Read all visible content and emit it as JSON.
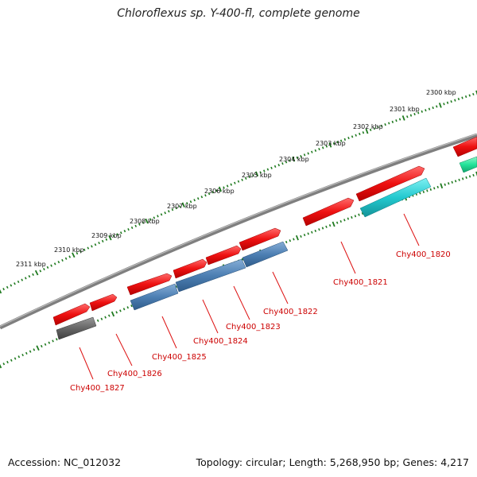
{
  "title": "Chloroflexus sp. Y-400-fl, complete genome",
  "footer": {
    "accession": "Accession: NC_012032",
    "stats": "Topology: circular; Length: 5,268,950 bp; Genes: 4,217"
  },
  "kbp_labels": [
    "2300 kbp",
    "2301 kbp",
    "2302 kbp",
    "2303 kbp",
    "2304 kbp",
    "2305 kbp",
    "2306 kbp",
    "2307 kbp",
    "2308 kbp",
    "2309 kbp",
    "2310 kbp",
    "2311 kbp"
  ],
  "gene_labels": [
    "Chy400_1820",
    "Chy400_1821",
    "Chy400_1822",
    "Chy400_1823",
    "Chy400_1824",
    "Chy400_1825",
    "Chy400_1826",
    "Chy400_1827"
  ],
  "colors": {
    "backbone": "#8a8a8a",
    "ticks": "#1f7a1f",
    "forward_gene": "#ee1111",
    "reverse_gene_blue": "#4d7fb3",
    "reverse_gene_cyan": "#22c9cf",
    "reverse_gene_grey": "#666666",
    "partial_gene_green": "#22e39a",
    "label_text": "#cc0000"
  }
}
